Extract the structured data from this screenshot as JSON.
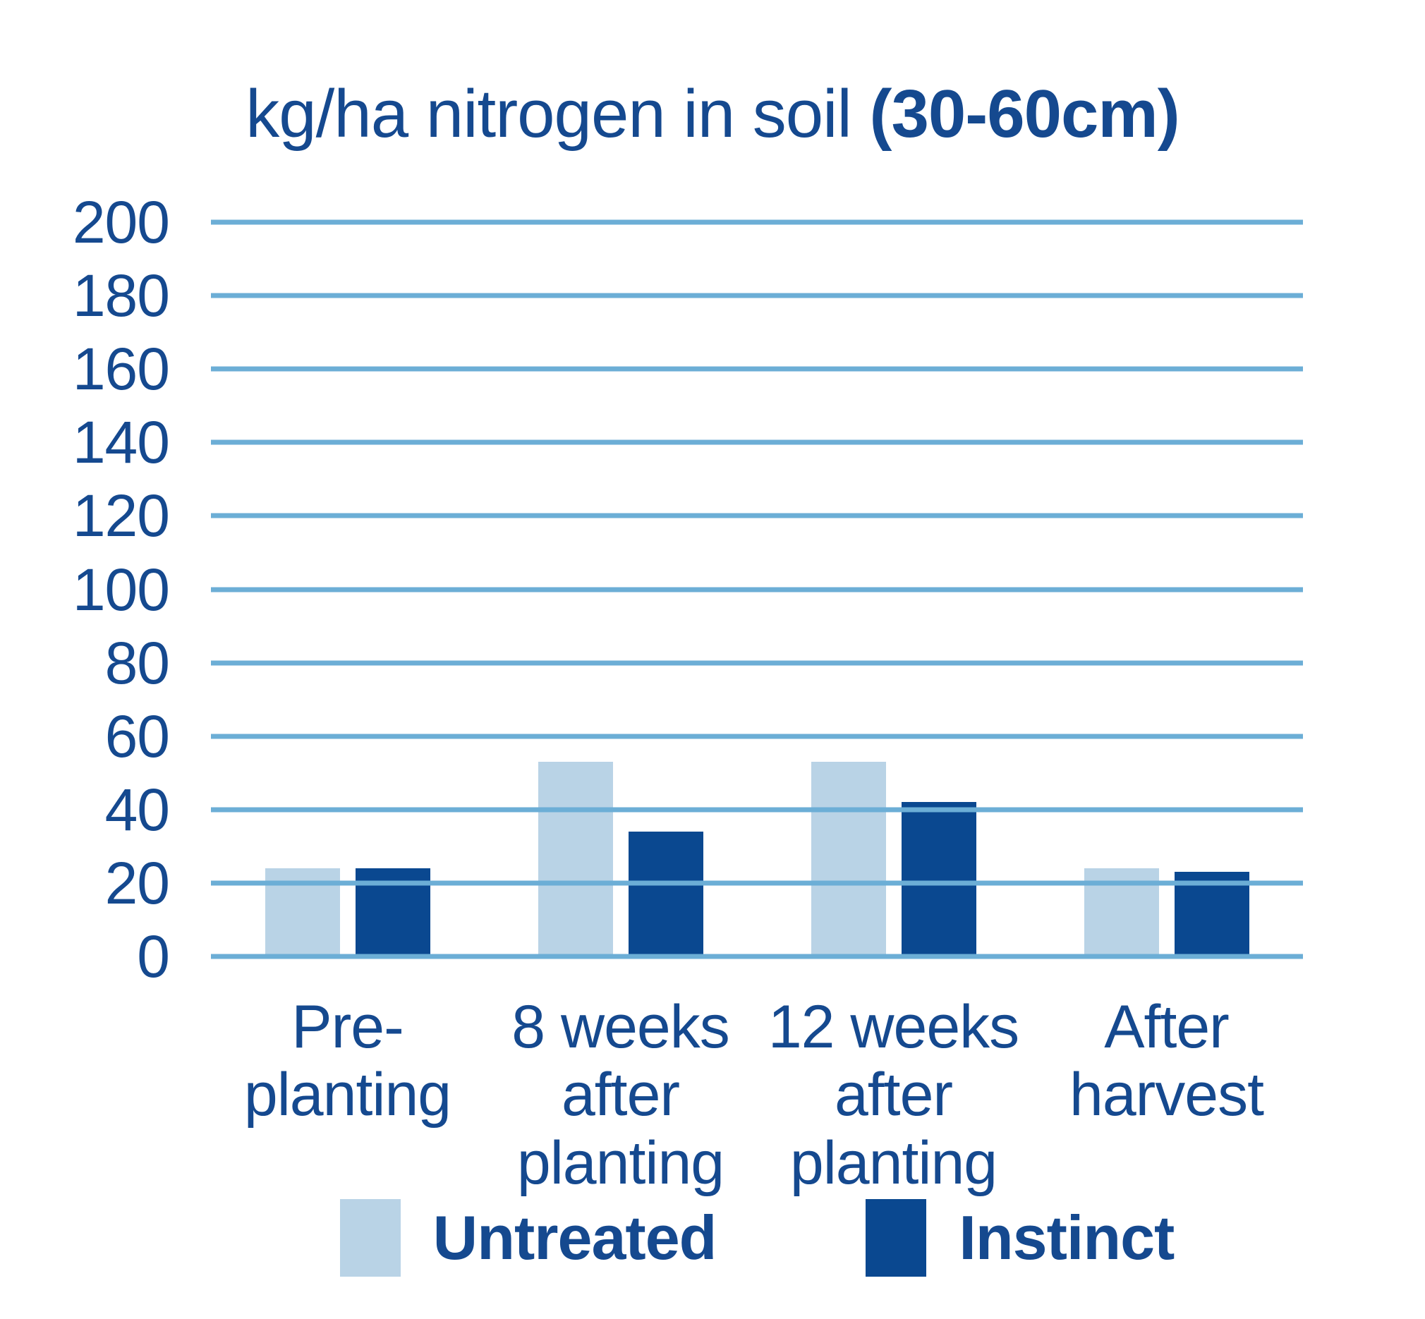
{
  "chart_data": {
    "type": "bar",
    "title": "kg/ha nitrogen in soil (30-60cm)",
    "title_regular": "kg/ha nitrogen in soil ",
    "title_bold": "(30-60cm)",
    "categories": [
      "Pre-\nplanting",
      "8 weeks\nafter\nplanting",
      "12 weeks\nafter\nplanting",
      "After\nharvest"
    ],
    "series": [
      {
        "name": "Untreated",
        "color": "#b9d3e6",
        "values": [
          24,
          53,
          53,
          24
        ]
      },
      {
        "name": "Instinct",
        "color": "#0a4890",
        "values": [
          24,
          34,
          42,
          23
        ]
      }
    ],
    "xlabel": "",
    "ylabel": "",
    "ylim": [
      0,
      200
    ],
    "ytick_step": 20,
    "yticks": [
      0,
      20,
      40,
      60,
      80,
      100,
      120,
      140,
      160,
      180,
      200
    ],
    "grid": true,
    "gridline_color": "#6caed6",
    "text_color": "#15498f",
    "background_color": "#ffffff",
    "legend_position": "bottom"
  }
}
